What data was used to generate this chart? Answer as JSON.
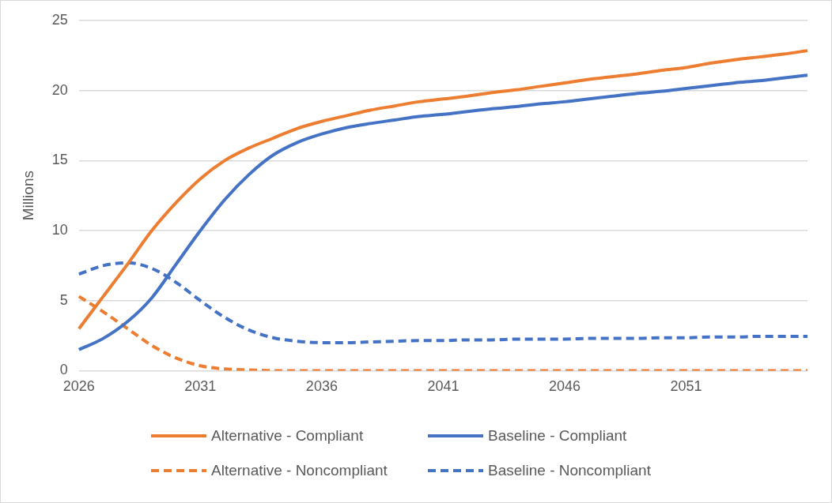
{
  "chart_data": {
    "type": "line",
    "ylabel": "Millions",
    "categories": [
      "2026",
      null,
      null,
      null,
      null,
      "2031",
      null,
      null,
      null,
      null,
      "2036",
      null,
      null,
      null,
      null,
      "2041",
      null,
      null,
      null,
      null,
      "2046",
      null,
      null,
      null,
      null,
      "2051",
      null,
      null,
      null,
      null,
      null
    ],
    "ylim": [
      0,
      25
    ],
    "yticks": [
      0,
      5,
      10,
      15,
      20,
      25
    ],
    "grid": "y",
    "legend": "bottom",
    "marker": "none",
    "series": [
      {
        "name": "Alternative - Compliant",
        "color": "#ed7d31",
        "line_style": "solid",
        "values": [
          3.0,
          5.3,
          7.6,
          10.0,
          12.0,
          13.7,
          15.0,
          15.9,
          16.6,
          17.3,
          17.8,
          18.2,
          18.6,
          18.9,
          19.2,
          19.4,
          19.6,
          19.85,
          20.05,
          20.3,
          20.55,
          20.8,
          21.0,
          21.2,
          21.45,
          21.65,
          21.95,
          22.2,
          22.4,
          22.6,
          22.85
        ]
      },
      {
        "name": "Baseline - Compliant",
        "color": "#4472c4",
        "line_style": "solid",
        "values": [
          1.5,
          2.3,
          3.5,
          5.2,
          7.6,
          10.0,
          12.2,
          14.0,
          15.4,
          16.3,
          16.9,
          17.35,
          17.65,
          17.9,
          18.15,
          18.3,
          18.5,
          18.7,
          18.85,
          19.05,
          19.2,
          19.4,
          19.6,
          19.8,
          19.95,
          20.15,
          20.35,
          20.55,
          20.7,
          20.9,
          21.1
        ]
      },
      {
        "name": "Alternative - Noncompliant",
        "color": "#ed7d31",
        "line_style": "dashed",
        "values": [
          5.3,
          4.2,
          3.0,
          1.8,
          0.9,
          0.35,
          0.12,
          0.05,
          0,
          0,
          0,
          0,
          0,
          0,
          0,
          0,
          0,
          0,
          0,
          0,
          0,
          0,
          0,
          0,
          0,
          0,
          0,
          0,
          0,
          0,
          0
        ]
      },
      {
        "name": "Baseline - Noncompliant",
        "color": "#4472c4",
        "line_style": "dashed",
        "values": [
          6.9,
          7.5,
          7.7,
          7.3,
          6.3,
          5.0,
          3.8,
          2.9,
          2.35,
          2.1,
          2.0,
          2.0,
          2.05,
          2.1,
          2.15,
          2.15,
          2.2,
          2.2,
          2.25,
          2.25,
          2.25,
          2.3,
          2.3,
          2.3,
          2.35,
          2.35,
          2.4,
          2.4,
          2.45,
          2.45,
          2.45
        ]
      }
    ]
  }
}
